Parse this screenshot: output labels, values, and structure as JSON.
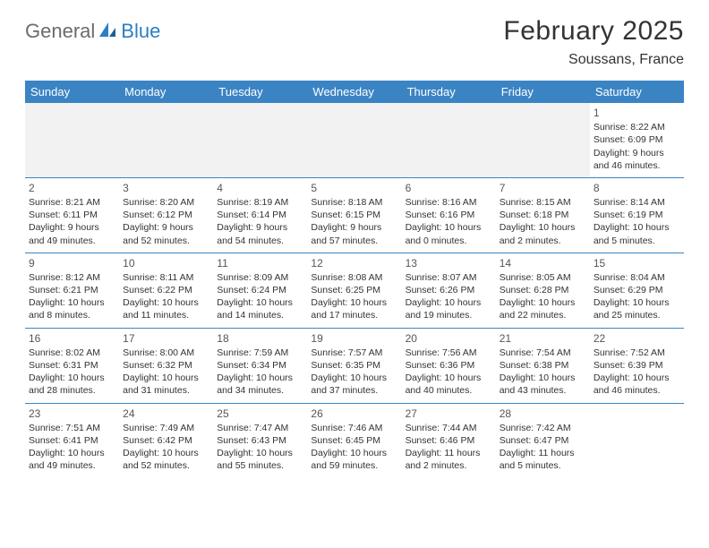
{
  "logo": {
    "part1": "General",
    "part2": "Blue"
  },
  "title": "February 2025",
  "location": "Soussans, France",
  "day_headers": [
    "Sunday",
    "Monday",
    "Tuesday",
    "Wednesday",
    "Thursday",
    "Friday",
    "Saturday"
  ],
  "colors": {
    "header_bg": "#3b84c4",
    "header_text": "#ffffff",
    "border": "#3b84c4",
    "logo_gray": "#6b6b6b",
    "logo_blue": "#2d7fc1",
    "text": "#333333",
    "alt_row_bg": "#f2f2f2"
  },
  "weeks": [
    [
      null,
      null,
      null,
      null,
      null,
      null,
      {
        "n": "1",
        "sunrise": "Sunrise: 8:22 AM",
        "sunset": "Sunset: 6:09 PM",
        "daylight": "Daylight: 9 hours and 46 minutes."
      }
    ],
    [
      {
        "n": "2",
        "sunrise": "Sunrise: 8:21 AM",
        "sunset": "Sunset: 6:11 PM",
        "daylight": "Daylight: 9 hours and 49 minutes."
      },
      {
        "n": "3",
        "sunrise": "Sunrise: 8:20 AM",
        "sunset": "Sunset: 6:12 PM",
        "daylight": "Daylight: 9 hours and 52 minutes."
      },
      {
        "n": "4",
        "sunrise": "Sunrise: 8:19 AM",
        "sunset": "Sunset: 6:14 PM",
        "daylight": "Daylight: 9 hours and 54 minutes."
      },
      {
        "n": "5",
        "sunrise": "Sunrise: 8:18 AM",
        "sunset": "Sunset: 6:15 PM",
        "daylight": "Daylight: 9 hours and 57 minutes."
      },
      {
        "n": "6",
        "sunrise": "Sunrise: 8:16 AM",
        "sunset": "Sunset: 6:16 PM",
        "daylight": "Daylight: 10 hours and 0 minutes."
      },
      {
        "n": "7",
        "sunrise": "Sunrise: 8:15 AM",
        "sunset": "Sunset: 6:18 PM",
        "daylight": "Daylight: 10 hours and 2 minutes."
      },
      {
        "n": "8",
        "sunrise": "Sunrise: 8:14 AM",
        "sunset": "Sunset: 6:19 PM",
        "daylight": "Daylight: 10 hours and 5 minutes."
      }
    ],
    [
      {
        "n": "9",
        "sunrise": "Sunrise: 8:12 AM",
        "sunset": "Sunset: 6:21 PM",
        "daylight": "Daylight: 10 hours and 8 minutes."
      },
      {
        "n": "10",
        "sunrise": "Sunrise: 8:11 AM",
        "sunset": "Sunset: 6:22 PM",
        "daylight": "Daylight: 10 hours and 11 minutes."
      },
      {
        "n": "11",
        "sunrise": "Sunrise: 8:09 AM",
        "sunset": "Sunset: 6:24 PM",
        "daylight": "Daylight: 10 hours and 14 minutes."
      },
      {
        "n": "12",
        "sunrise": "Sunrise: 8:08 AM",
        "sunset": "Sunset: 6:25 PM",
        "daylight": "Daylight: 10 hours and 17 minutes."
      },
      {
        "n": "13",
        "sunrise": "Sunrise: 8:07 AM",
        "sunset": "Sunset: 6:26 PM",
        "daylight": "Daylight: 10 hours and 19 minutes."
      },
      {
        "n": "14",
        "sunrise": "Sunrise: 8:05 AM",
        "sunset": "Sunset: 6:28 PM",
        "daylight": "Daylight: 10 hours and 22 minutes."
      },
      {
        "n": "15",
        "sunrise": "Sunrise: 8:04 AM",
        "sunset": "Sunset: 6:29 PM",
        "daylight": "Daylight: 10 hours and 25 minutes."
      }
    ],
    [
      {
        "n": "16",
        "sunrise": "Sunrise: 8:02 AM",
        "sunset": "Sunset: 6:31 PM",
        "daylight": "Daylight: 10 hours and 28 minutes."
      },
      {
        "n": "17",
        "sunrise": "Sunrise: 8:00 AM",
        "sunset": "Sunset: 6:32 PM",
        "daylight": "Daylight: 10 hours and 31 minutes."
      },
      {
        "n": "18",
        "sunrise": "Sunrise: 7:59 AM",
        "sunset": "Sunset: 6:34 PM",
        "daylight": "Daylight: 10 hours and 34 minutes."
      },
      {
        "n": "19",
        "sunrise": "Sunrise: 7:57 AM",
        "sunset": "Sunset: 6:35 PM",
        "daylight": "Daylight: 10 hours and 37 minutes."
      },
      {
        "n": "20",
        "sunrise": "Sunrise: 7:56 AM",
        "sunset": "Sunset: 6:36 PM",
        "daylight": "Daylight: 10 hours and 40 minutes."
      },
      {
        "n": "21",
        "sunrise": "Sunrise: 7:54 AM",
        "sunset": "Sunset: 6:38 PM",
        "daylight": "Daylight: 10 hours and 43 minutes."
      },
      {
        "n": "22",
        "sunrise": "Sunrise: 7:52 AM",
        "sunset": "Sunset: 6:39 PM",
        "daylight": "Daylight: 10 hours and 46 minutes."
      }
    ],
    [
      {
        "n": "23",
        "sunrise": "Sunrise: 7:51 AM",
        "sunset": "Sunset: 6:41 PM",
        "daylight": "Daylight: 10 hours and 49 minutes."
      },
      {
        "n": "24",
        "sunrise": "Sunrise: 7:49 AM",
        "sunset": "Sunset: 6:42 PM",
        "daylight": "Daylight: 10 hours and 52 minutes."
      },
      {
        "n": "25",
        "sunrise": "Sunrise: 7:47 AM",
        "sunset": "Sunset: 6:43 PM",
        "daylight": "Daylight: 10 hours and 55 minutes."
      },
      {
        "n": "26",
        "sunrise": "Sunrise: 7:46 AM",
        "sunset": "Sunset: 6:45 PM",
        "daylight": "Daylight: 10 hours and 59 minutes."
      },
      {
        "n": "27",
        "sunrise": "Sunrise: 7:44 AM",
        "sunset": "Sunset: 6:46 PM",
        "daylight": "Daylight: 11 hours and 2 minutes."
      },
      {
        "n": "28",
        "sunrise": "Sunrise: 7:42 AM",
        "sunset": "Sunset: 6:47 PM",
        "daylight": "Daylight: 11 hours and 5 minutes."
      },
      null
    ]
  ]
}
